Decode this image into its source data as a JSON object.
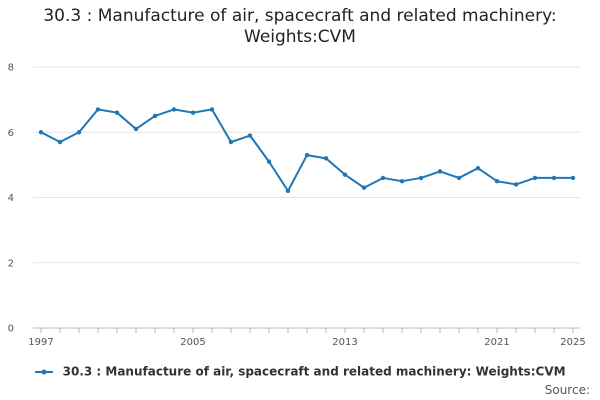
{
  "chart_data": {
    "type": "line",
    "title_line1": "30.3 : Manufacture of air, spacecraft and related machinery:",
    "title_line2": "Weights:CVM",
    "xlabel": "",
    "ylabel": "",
    "x": [
      1997,
      1998,
      1999,
      2000,
      2001,
      2002,
      2003,
      2004,
      2005,
      2006,
      2007,
      2008,
      2009,
      2010,
      2011,
      2012,
      2013,
      2014,
      2015,
      2016,
      2017,
      2018,
      2019,
      2020,
      2021,
      2022,
      2023,
      2024,
      2025
    ],
    "series": [
      {
        "name": "30.3 : Manufacture of air, spacecraft and related machinery: Weights:CVM",
        "values": [
          6.0,
          5.7,
          6.0,
          6.7,
          6.6,
          6.1,
          6.5,
          6.7,
          6.6,
          6.7,
          5.7,
          5.9,
          5.1,
          4.2,
          5.3,
          5.2,
          4.7,
          4.3,
          4.6,
          4.5,
          4.6,
          4.8,
          4.6,
          4.9,
          4.5,
          4.4,
          4.6,
          4.6,
          4.6
        ],
        "color": "#1f77b4"
      }
    ],
    "ylim": [
      0,
      8
    ],
    "yticks": [
      0,
      2,
      4,
      6,
      8
    ],
    "xticks": [
      1997,
      2005,
      2013,
      2021,
      2025
    ],
    "grid": true,
    "legend": "bottom"
  },
  "source_label": "Source:"
}
